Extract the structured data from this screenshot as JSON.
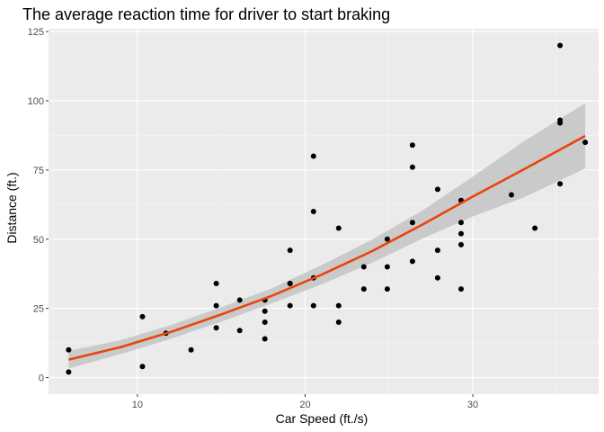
{
  "chart_data": {
    "type": "scatter",
    "title": "The average reaction time for driver to start braking",
    "xlabel": "Car Speed (ft./s)",
    "ylabel": "Distance (ft.)",
    "xlim": [
      4.7,
      37.5
    ],
    "ylim": [
      -6,
      126
    ],
    "x_ticks": [
      10,
      20,
      30
    ],
    "y_ticks": [
      0,
      25,
      50,
      75,
      100,
      125
    ],
    "x_tick_labels": [
      "10",
      "20",
      "30"
    ],
    "y_tick_labels": [
      "0",
      "25",
      "50",
      "75",
      "100",
      "125"
    ],
    "grid": true,
    "legend": "none",
    "points": [
      {
        "x": 5.9,
        "y": 2
      },
      {
        "x": 5.9,
        "y": 10
      },
      {
        "x": 10.3,
        "y": 4
      },
      {
        "x": 10.3,
        "y": 22
      },
      {
        "x": 11.7,
        "y": 16
      },
      {
        "x": 13.2,
        "y": 10
      },
      {
        "x": 14.7,
        "y": 18
      },
      {
        "x": 14.7,
        "y": 26
      },
      {
        "x": 14.7,
        "y": 34
      },
      {
        "x": 16.1,
        "y": 17
      },
      {
        "x": 16.1,
        "y": 28
      },
      {
        "x": 17.6,
        "y": 14
      },
      {
        "x": 17.6,
        "y": 20
      },
      {
        "x": 17.6,
        "y": 24
      },
      {
        "x": 17.6,
        "y": 28
      },
      {
        "x": 19.1,
        "y": 26
      },
      {
        "x": 19.1,
        "y": 34
      },
      {
        "x": 19.1,
        "y": 34
      },
      {
        "x": 19.1,
        "y": 46
      },
      {
        "x": 20.5,
        "y": 26
      },
      {
        "x": 20.5,
        "y": 36
      },
      {
        "x": 20.5,
        "y": 60
      },
      {
        "x": 20.5,
        "y": 80
      },
      {
        "x": 22.0,
        "y": 20
      },
      {
        "x": 22.0,
        "y": 26
      },
      {
        "x": 22.0,
        "y": 54
      },
      {
        "x": 23.5,
        "y": 32
      },
      {
        "x": 23.5,
        "y": 40
      },
      {
        "x": 24.9,
        "y": 32
      },
      {
        "x": 24.9,
        "y": 40
      },
      {
        "x": 24.9,
        "y": 50
      },
      {
        "x": 26.4,
        "y": 42
      },
      {
        "x": 26.4,
        "y": 56
      },
      {
        "x": 26.4,
        "y": 76
      },
      {
        "x": 26.4,
        "y": 84
      },
      {
        "x": 27.9,
        "y": 36
      },
      {
        "x": 27.9,
        "y": 46
      },
      {
        "x": 27.9,
        "y": 68
      },
      {
        "x": 29.3,
        "y": 32
      },
      {
        "x": 29.3,
        "y": 48
      },
      {
        "x": 29.3,
        "y": 52
      },
      {
        "x": 29.3,
        "y": 56
      },
      {
        "x": 29.3,
        "y": 64
      },
      {
        "x": 32.3,
        "y": 66
      },
      {
        "x": 33.7,
        "y": 54
      },
      {
        "x": 35.2,
        "y": 70
      },
      {
        "x": 35.2,
        "y": 92
      },
      {
        "x": 35.2,
        "y": 93
      },
      {
        "x": 35.2,
        "y": 120
      },
      {
        "x": 36.7,
        "y": 85
      }
    ],
    "fit_line": {
      "x": [
        5.9,
        9,
        12,
        15,
        18,
        21,
        24,
        27,
        30,
        33,
        36.7
      ],
      "y": [
        6.5,
        11.0,
        16.5,
        22.8,
        29.5,
        37.2,
        45.7,
        55.3,
        65.4,
        75.1,
        87.3
      ],
      "ymin": [
        3.3,
        8.5,
        14.0,
        20.2,
        26.8,
        33.7,
        41.5,
        50.2,
        58.2,
        65.0,
        75.5
      ],
      "ymax": [
        9.7,
        13.5,
        19.0,
        25.4,
        32.2,
        40.7,
        49.9,
        60.4,
        72.6,
        85.2,
        99.1
      ]
    },
    "colors": {
      "panel": "#ebebeb",
      "grid_major": "#ffffff",
      "grid_minor": "#f5f5f5",
      "points": "#000000",
      "fit_line": "#e8450c",
      "ribbon": "#bfbfbf"
    }
  }
}
